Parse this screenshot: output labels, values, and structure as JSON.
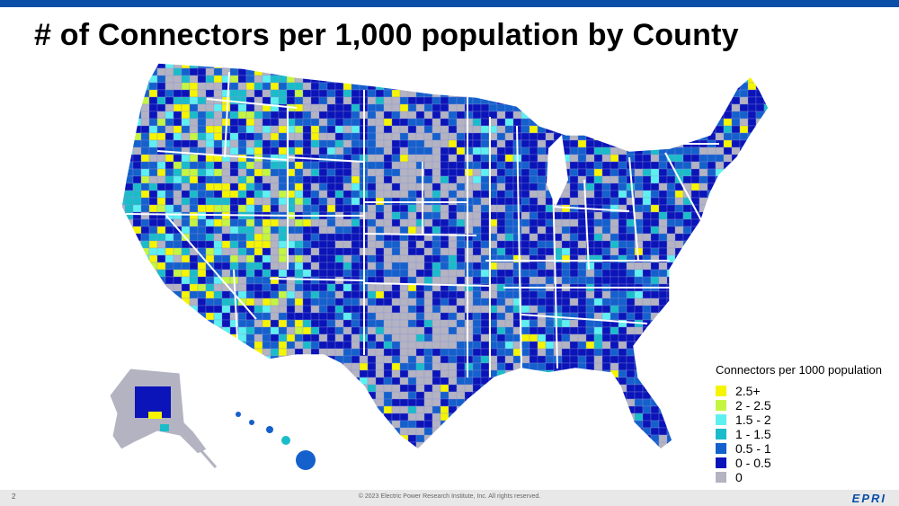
{
  "title": "# of Connectors per 1,000 population by County",
  "legend": {
    "title": "Connectors per 1000 population",
    "items": [
      {
        "label": "2.5+",
        "color": "#f5f500"
      },
      {
        "label": "2 - 2.5",
        "color": "#c4f542"
      },
      {
        "label": "1.5 - 2",
        "color": "#5ef0f0"
      },
      {
        "label": "1 - 1.5",
        "color": "#1bbcc9"
      },
      {
        "label": "0.5 - 1",
        "color": "#1460cc"
      },
      {
        "label": "0 - 0.5",
        "color": "#0a14b8"
      },
      {
        "label": "0",
        "color": "#b3b3c2"
      }
    ]
  },
  "footer": {
    "page_number": "2",
    "copyright": "© 2023 Electric Power Research Institute, Inc. All rights reserved.",
    "logo": "EPRI"
  },
  "colors": {
    "accent_bar": "#0a4ea8",
    "state_border": "#ffffff"
  }
}
